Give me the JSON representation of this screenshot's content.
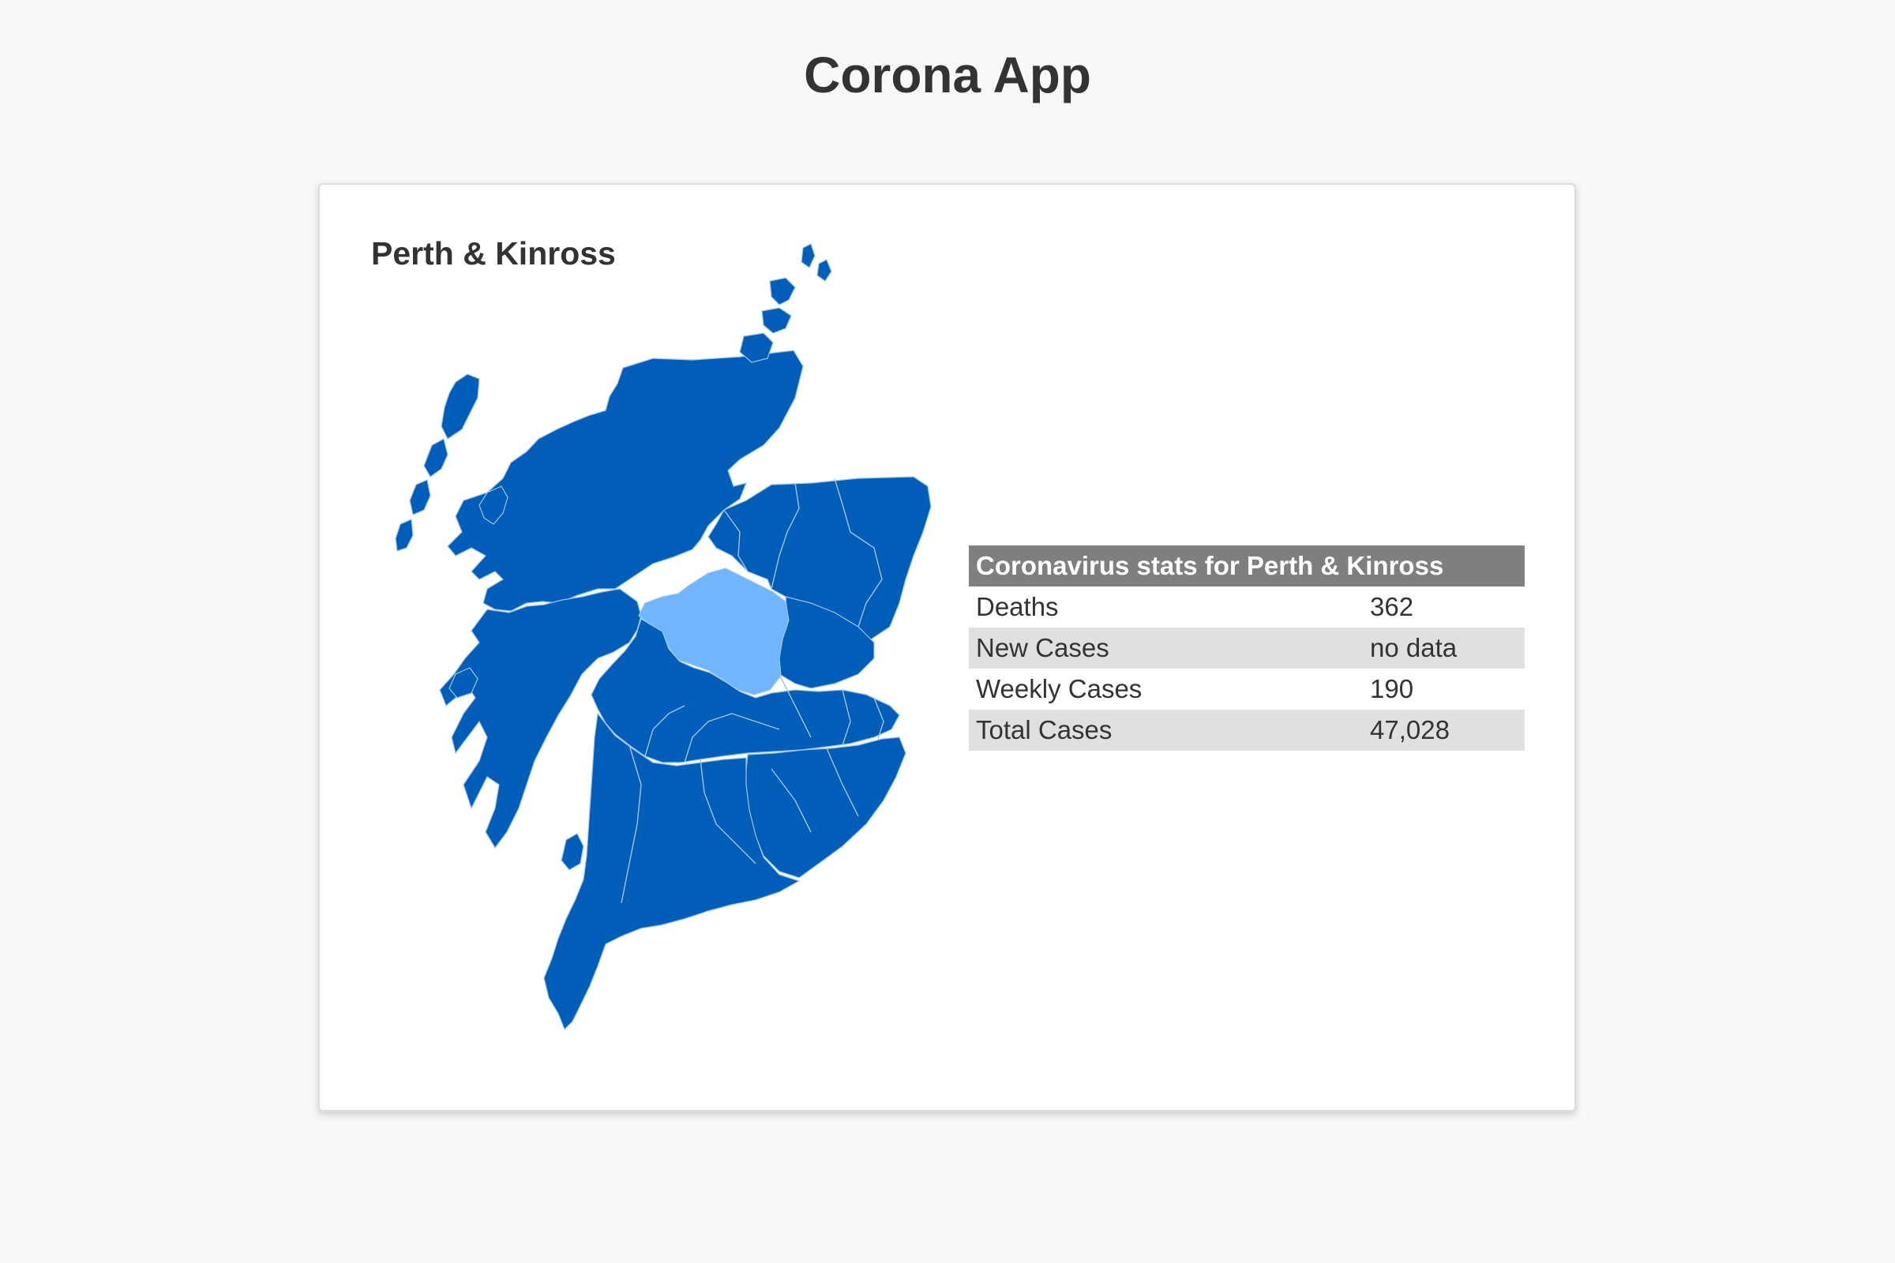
{
  "app": {
    "title": "Corona App"
  },
  "selection": {
    "region_name": "Perth & Kinross"
  },
  "map": {
    "colors": {
      "region_fill": "#005eb8",
      "selected_fill": "#6fb5ff",
      "border": "#9fc3ee"
    },
    "selected_region": "perth-and-kinross"
  },
  "stats": {
    "header": "Coronavirus stats for Perth & Kinross",
    "rows": [
      {
        "label": "Deaths",
        "value": "362"
      },
      {
        "label": "New Cases",
        "value": "no data"
      },
      {
        "label": "Weekly Cases",
        "value": "190"
      },
      {
        "label": "Total Cases",
        "value": "47,028"
      }
    ]
  }
}
